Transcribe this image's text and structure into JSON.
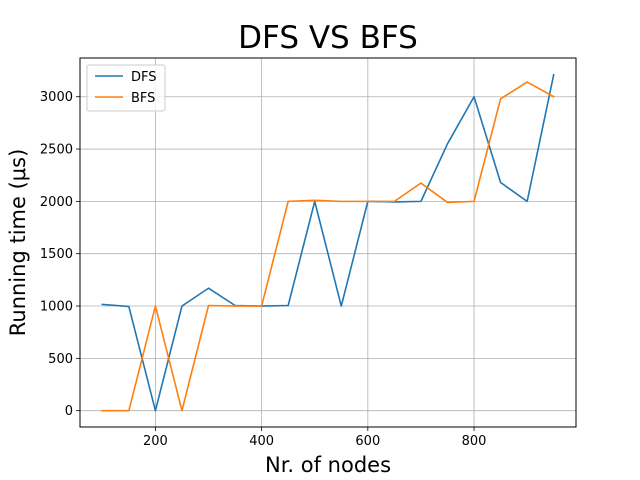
{
  "chart_data": {
    "type": "line",
    "title": "DFS VS BFS",
    "xlabel": "Nr. of nodes",
    "ylabel": "Running time (μs)",
    "x": [
      100,
      150,
      200,
      250,
      300,
      350,
      400,
      450,
      500,
      550,
      600,
      650,
      700,
      750,
      800,
      850,
      900,
      950
    ],
    "xlim": [
      58,
      992
    ],
    "ylim": [
      -156,
      3370
    ],
    "xticks": [
      200,
      400,
      600,
      800
    ],
    "yticks": [
      0,
      500,
      1000,
      1500,
      2000,
      2500,
      3000
    ],
    "grid": true,
    "legend_position": "top-left",
    "series": [
      {
        "name": "DFS",
        "color": "#1f77b4",
        "values": [
          1015,
          995,
          0,
          1000,
          1170,
          1005,
          1000,
          1005,
          2000,
          1000,
          2000,
          1995,
          2000,
          2550,
          3000,
          2180,
          2000,
          3210
        ]
      },
      {
        "name": "BFS",
        "color": "#ff7f0e",
        "values": [
          0,
          0,
          1000,
          0,
          1005,
          1000,
          1000,
          2000,
          2010,
          2000,
          2000,
          2000,
          2175,
          1990,
          2000,
          2980,
          3140,
          3000
        ]
      }
    ]
  }
}
